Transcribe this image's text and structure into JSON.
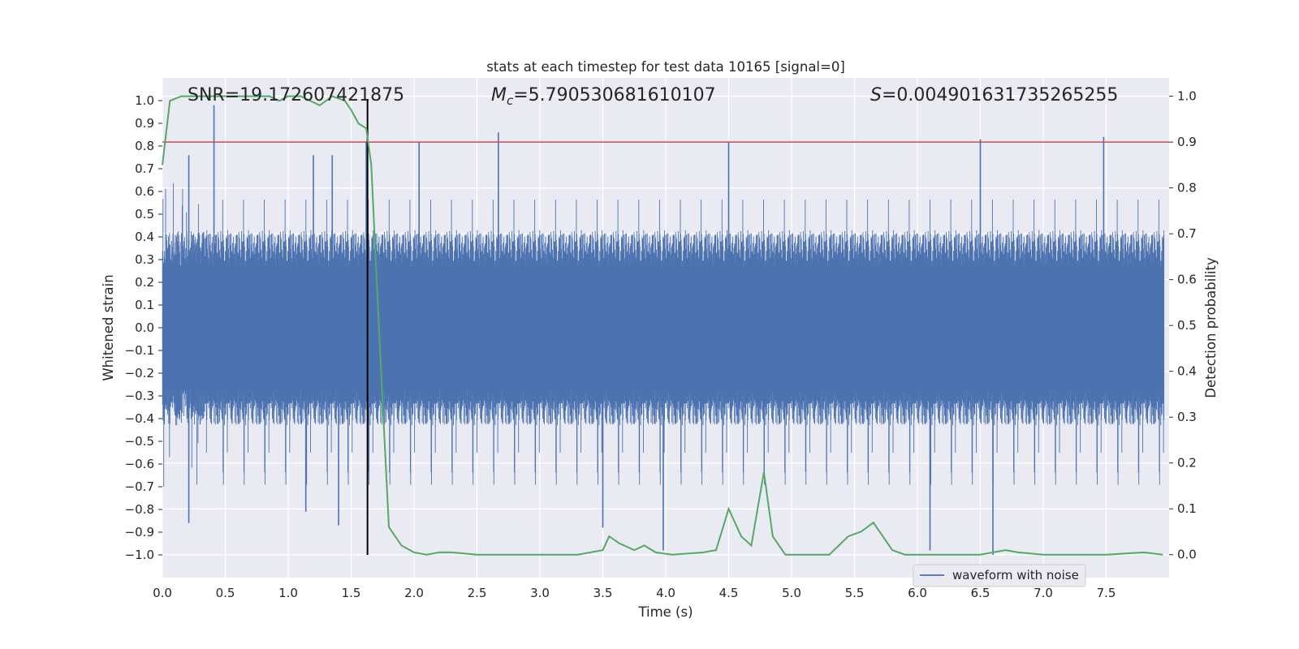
{
  "chart_data": {
    "type": "line",
    "title": "stats at each timestep for test data 10165 [signal=0]",
    "xlabel": "Time (s)",
    "ylabel_left": "Whitened strain",
    "ylabel_right": "Detection probability",
    "xlim": [
      0.0,
      8.0
    ],
    "ylim_left": [
      -1.1,
      1.1
    ],
    "ylim_right": [
      -0.05,
      1.04
    ],
    "x_ticks": [
      "0.0",
      "0.5",
      "1.0",
      "1.5",
      "2.0",
      "2.5",
      "3.0",
      "3.5",
      "4.0",
      "4.5",
      "5.0",
      "5.5",
      "6.0",
      "6.5",
      "7.0",
      "7.5"
    ],
    "y_left_ticks": [
      "1.0",
      "0.9",
      "0.8",
      "0.7",
      "0.6",
      "0.5",
      "0.4",
      "0.3",
      "0.2",
      "0.1",
      "0.0",
      "−0.1",
      "−0.2",
      "−0.3",
      "−0.4",
      "−0.5",
      "−0.6",
      "−0.7",
      "−0.8",
      "−0.9",
      "−1.0"
    ],
    "y_right_ticks": [
      "1.0",
      "0.9",
      "0.8",
      "0.7",
      "0.6",
      "0.5",
      "0.4",
      "0.3",
      "0.2",
      "0.1",
      "0.0"
    ],
    "grid": true,
    "legend": {
      "label": "waveform with noise",
      "placement": "lower-right"
    },
    "annotations": {
      "snr": "SNR=19.172607421875",
      "mc_symbol": "M",
      "mc_sub": "c",
      "mc_value": "=5.790530681610107",
      "s_symbol": "S",
      "s_value": "=0.004901631735265255"
    },
    "threshold_probability": 0.9,
    "marker_time": 1.63,
    "series": [
      {
        "name": "waveform with noise",
        "axis": "left",
        "style": "dense noise envelope",
        "color": "#4c72b0",
        "mostly_within": [
          -0.42,
          0.42
        ],
        "peak_spikes": [
          {
            "t": 0.21,
            "v": 0.76
          },
          {
            "t": 0.41,
            "v": 0.98
          },
          {
            "t": 1.2,
            "v": 0.76
          },
          {
            "t": 1.35,
            "v": 0.76
          },
          {
            "t": 1.62,
            "v": 0.82
          },
          {
            "t": 2.04,
            "v": 0.82
          },
          {
            "t": 2.67,
            "v": 0.86
          },
          {
            "t": 4.5,
            "v": 0.82
          },
          {
            "t": 6.5,
            "v": 0.83
          },
          {
            "t": 7.48,
            "v": 0.84
          }
        ],
        "trough_spikes": [
          {
            "t": 0.21,
            "v": -0.86
          },
          {
            "t": 1.14,
            "v": -0.81
          },
          {
            "t": 1.4,
            "v": -0.87
          },
          {
            "t": 3.5,
            "v": -0.88
          },
          {
            "t": 3.98,
            "v": -0.98
          },
          {
            "t": 6.1,
            "v": -0.98
          },
          {
            "t": 6.6,
            "v": -1.0
          }
        ]
      },
      {
        "name": "detection probability",
        "axis": "right",
        "color": "#55a868",
        "t": [
          0.0,
          0.06,
          0.15,
          0.3,
          0.5,
          0.7,
          0.85,
          0.93,
          1.0,
          1.1,
          1.25,
          1.35,
          1.45,
          1.5,
          1.56,
          1.62,
          1.66,
          1.72,
          1.8,
          1.9,
          2.0,
          2.1,
          2.2,
          2.3,
          2.5,
          3.0,
          3.3,
          3.5,
          3.55,
          3.63,
          3.75,
          3.83,
          3.92,
          4.05,
          4.3,
          4.4,
          4.5,
          4.6,
          4.68,
          4.78,
          4.85,
          4.95,
          5.1,
          5.3,
          5.45,
          5.55,
          5.65,
          5.75,
          5.8,
          5.9,
          6.05,
          6.2,
          6.5,
          6.6,
          6.7,
          6.8,
          7.0,
          7.5,
          7.8,
          7.95
        ],
        "p": [
          0.85,
          0.99,
          1.0,
          1.0,
          1.0,
          1.0,
          1.0,
          0.99,
          1.0,
          1.0,
          0.98,
          1.0,
          0.99,
          0.97,
          0.94,
          0.93,
          0.85,
          0.5,
          0.06,
          0.02,
          0.005,
          0.0,
          0.005,
          0.005,
          0.0,
          0.0,
          0.0,
          0.01,
          0.04,
          0.025,
          0.01,
          0.02,
          0.005,
          0.0,
          0.005,
          0.01,
          0.1,
          0.04,
          0.02,
          0.18,
          0.04,
          0.0,
          0.0,
          0.0,
          0.04,
          0.05,
          0.07,
          0.03,
          0.01,
          0.0,
          0.0,
          0.0,
          0.0,
          0.005,
          0.01,
          0.005,
          0.0,
          0.0,
          0.005,
          0.0
        ]
      }
    ]
  }
}
